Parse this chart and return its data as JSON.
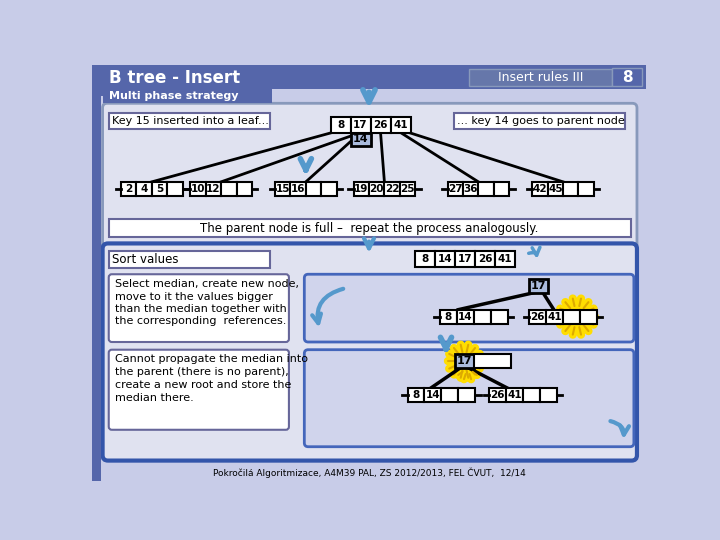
{
  "title": "B tree - Insert",
  "subtitle": "Multi phase strategy",
  "rules_label": "Insert rules III",
  "page_num": "8",
  "bg_color": "#c8cce8",
  "header_color": "#5566aa",
  "white": "#ffffff",
  "blue_arrow": "#5599cc",
  "light_panel": "#e0e2f0",
  "mid_panel": "#d0d4ec",
  "footer": "Pokročilá Algoritmizace, A4M39 PAL, ZS 2012/2013, FEL ČVUT,  12/14",
  "cell_highlight": "#aabbdd"
}
